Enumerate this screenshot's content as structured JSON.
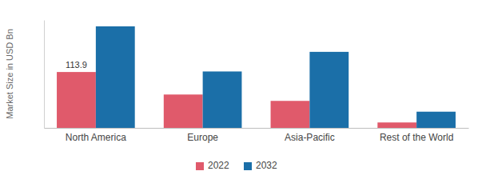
{
  "chart_data": {
    "type": "bar",
    "y_label": "Market Size in USD Bn",
    "categories": [
      "North America",
      "Europe",
      "Asia-Pacific",
      "Rest of the World"
    ],
    "series": [
      {
        "name": "2022",
        "color": "#e05a6b",
        "values": [
          113.9,
          68,
          55,
          11
        ],
        "value_labels": [
          "113.9",
          null,
          null,
          null
        ]
      },
      {
        "name": "2032",
        "color": "#1b6fa8",
        "values": [
          207,
          115,
          155,
          33
        ]
      }
    ],
    "ylim": [
      0,
      220
    ],
    "tick_labels": "x",
    "legend": "bottom",
    "grid": false
  }
}
